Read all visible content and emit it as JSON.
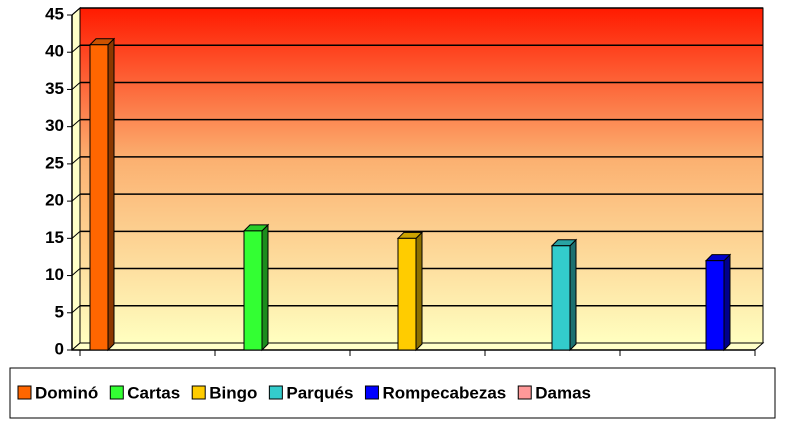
{
  "chart_data": {
    "type": "bar",
    "series": [
      {
        "name": "Dominó",
        "color": "#ff6600",
        "values": [
          41
        ]
      },
      {
        "name": "Cartas",
        "color": "#33ff33",
        "values": [
          16
        ]
      },
      {
        "name": "Bingo",
        "color": "#ffcc00",
        "values": [
          15
        ]
      },
      {
        "name": "Parqués",
        "color": "#33cccc",
        "values": [
          14
        ]
      },
      {
        "name": "Rompecabezas",
        "color": "#0000ff",
        "values": [
          12
        ]
      },
      {
        "name": "Damas",
        "color": "#ff9999",
        "values": [
          0
        ]
      }
    ],
    "ylim": [
      0,
      45
    ],
    "yticks": [
      0,
      5,
      10,
      15,
      20,
      25,
      30,
      35,
      40,
      45
    ],
    "grid": true,
    "legend": "bottom"
  }
}
